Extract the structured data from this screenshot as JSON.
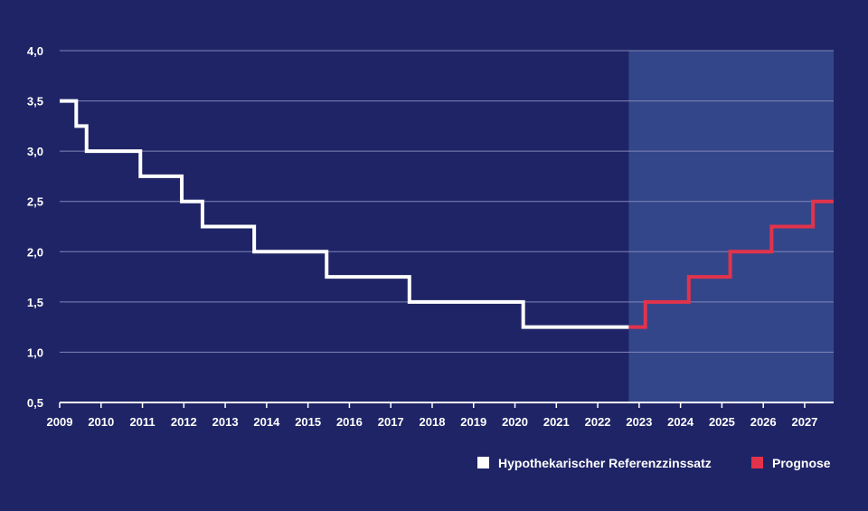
{
  "chart_data": {
    "type": "line",
    "step": true,
    "xlim": [
      2009,
      2027.7
    ],
    "ylim": [
      0.5,
      4.0
    ],
    "x_ticks": [
      "2009",
      "2010",
      "2011",
      "2012",
      "2013",
      "2014",
      "2015",
      "2016",
      "2017",
      "2018",
      "2019",
      "2020",
      "2021",
      "2022",
      "2023",
      "2024",
      "2025",
      "2026",
      "2027"
    ],
    "y_ticks": [
      "0,5",
      "1,0",
      "1,5",
      "2,0",
      "2,5",
      "3,0",
      "3,5",
      "4,0"
    ],
    "y_tick_values": [
      0.5,
      1.0,
      1.5,
      2.0,
      2.5,
      3.0,
      3.5,
      4.0
    ],
    "grid": "horizontal",
    "forecast_region": {
      "start": 2022.75,
      "end": 2027.7
    },
    "legend_position": "bottom-right",
    "series": [
      {
        "name": "Hypothekarischer Referenzzinssatz",
        "color": "#ffffff",
        "points": [
          [
            2009.0,
            3.5
          ],
          [
            2009.4,
            3.25
          ],
          [
            2009.65,
            3.0
          ],
          [
            2010.95,
            2.75
          ],
          [
            2011.95,
            2.5
          ],
          [
            2012.45,
            2.25
          ],
          [
            2013.7,
            2.0
          ],
          [
            2015.45,
            1.75
          ],
          [
            2017.45,
            1.5
          ],
          [
            2020.2,
            1.25
          ],
          [
            2022.75,
            1.25
          ]
        ]
      },
      {
        "name": "Prognose",
        "color": "#e2334b",
        "points": [
          [
            2022.75,
            1.25
          ],
          [
            2023.15,
            1.5
          ],
          [
            2024.2,
            1.75
          ],
          [
            2025.2,
            2.0
          ],
          [
            2026.2,
            2.25
          ],
          [
            2027.2,
            2.5
          ],
          [
            2027.7,
            2.5
          ]
        ]
      }
    ]
  },
  "colors": {
    "background": "#1e2466",
    "forecast_band": "#34468a",
    "grid": "#7f86b8",
    "axis": "#ffffff"
  }
}
